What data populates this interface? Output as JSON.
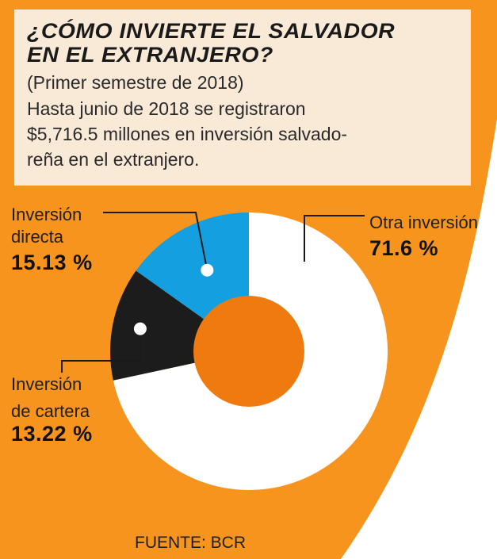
{
  "header": {
    "title_line1": "¿CÓMO INVIERTE EL SALVADOR",
    "title_line2": "EN EL EXTRANJERO?",
    "subtitle": "(Primer semestre de 2018)",
    "description": "Hasta junio de 2018 se registraron\n$5,716.5 millones en inversión salvado-\nreña en el extranjero."
  },
  "labels": {
    "directa_l1": "Inversión",
    "directa_l2": "directa",
    "directa_value": "15.13 %",
    "cartera_l1": "Inversión",
    "cartera_l2": "de cartera",
    "cartera_value": "13.22 %",
    "otra_l1": "Otra inversión",
    "otra_value": "71.6 %"
  },
  "source": "FUENTE: BCR",
  "colors": {
    "background_orange": "#f7941d",
    "header_bg": "#f9e9d7",
    "center_orange": "#ef7b10",
    "directa": "#139fe0",
    "cartera": "#1c1c1c",
    "otra": "#ffffff"
  },
  "chart_data": {
    "type": "pie",
    "categories": [
      "Otra inversión",
      "Inversión de cartera",
      "Inversión directa"
    ],
    "values": [
      71.6,
      13.22,
      15.13
    ],
    "unit": "%",
    "total_text": "$5,716.5 millones"
  }
}
